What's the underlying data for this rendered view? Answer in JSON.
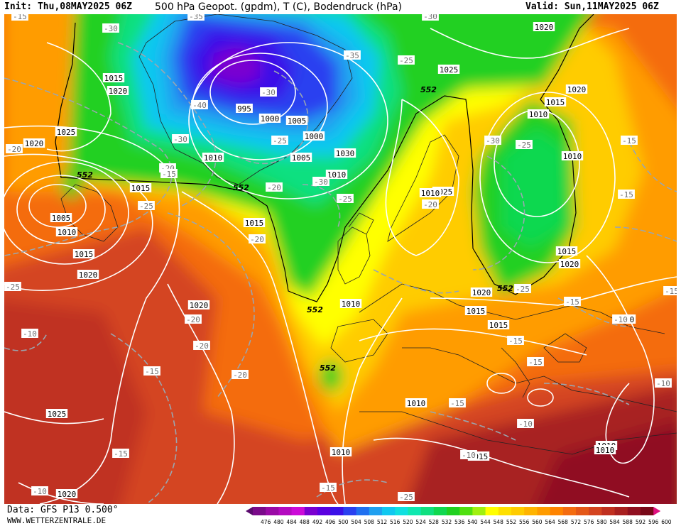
{
  "header": {
    "init": "Init: Thu,08MAY2025 06Z",
    "title": "500 hPa Geopot. (gpdm), T (C), Bodendruck (hPa)",
    "valid": "Valid: Sun,11MAY2025 06Z"
  },
  "footer": {
    "data_source": "Data: GFS P13 0.500°",
    "website": "WWW.WETTERZENTRALE.DE"
  },
  "legend": {
    "ticks": [
      "476",
      "480",
      "484",
      "488",
      "492",
      "496",
      "500",
      "504",
      "508",
      "512",
      "516",
      "520",
      "524",
      "528",
      "532",
      "536",
      "540",
      "544",
      "548",
      "552",
      "556",
      "560",
      "564",
      "568",
      "572",
      "576",
      "580",
      "584",
      "588",
      "592",
      "596",
      "600"
    ],
    "colors": [
      "#5a0a6e",
      "#7a0a8a",
      "#9a0aa6",
      "#b40ac0",
      "#cc0ad8",
      "#7a00d0",
      "#5a00e0",
      "#3a10e8",
      "#2a40f0",
      "#2070f0",
      "#20a0f0",
      "#10c8f0",
      "#10e0e0",
      "#10e8b0",
      "#10e080",
      "#10d850",
      "#20d020",
      "#50e010",
      "#a0f010",
      "#ffff00",
      "#ffe000",
      "#ffcc00",
      "#ffb400",
      "#ff9c00",
      "#ff8400",
      "#f46c10",
      "#e45818",
      "#d44420",
      "#c03020",
      "#a82020",
      "#901020",
      "#780818",
      "#e01080"
    ]
  },
  "map": {
    "height_552_label": "552",
    "pressure_labels": [
      "1020",
      "1015",
      "1020",
      "1025",
      "1020",
      "1015",
      "1005",
      "1010",
      "1015",
      "1020",
      "995",
      "1000",
      "1005",
      "1000",
      "1010",
      "1005",
      "1010",
      "1015",
      "1025",
      "1020",
      "1015",
      "1010",
      "1010",
      "1025",
      "1015",
      "1020",
      "1015",
      "1010",
      "1010",
      "1020",
      "1010",
      "1025",
      "1020",
      "1010",
      "1015",
      "1010",
      "1010",
      "1010",
      "1015",
      "1020",
      "1030"
    ],
    "temp_labels": [
      "-15",
      "-30",
      "-35",
      "-30",
      "-40",
      "-30",
      "-35",
      "-25",
      "-30",
      "-25",
      "-30",
      "-25",
      "-20",
      "-20",
      "-30",
      "-25",
      "-25",
      "-15",
      "-20",
      "-20",
      "-20",
      "-15",
      "-25",
      "-15",
      "-20",
      "-15",
      "-20",
      "-20",
      "-15",
      "-10",
      "-25",
      "-15",
      "-15",
      "-15",
      "-10",
      "-10",
      "-15",
      "-10",
      "-10",
      "-15",
      "-25",
      "-10",
      "-15"
    ]
  }
}
